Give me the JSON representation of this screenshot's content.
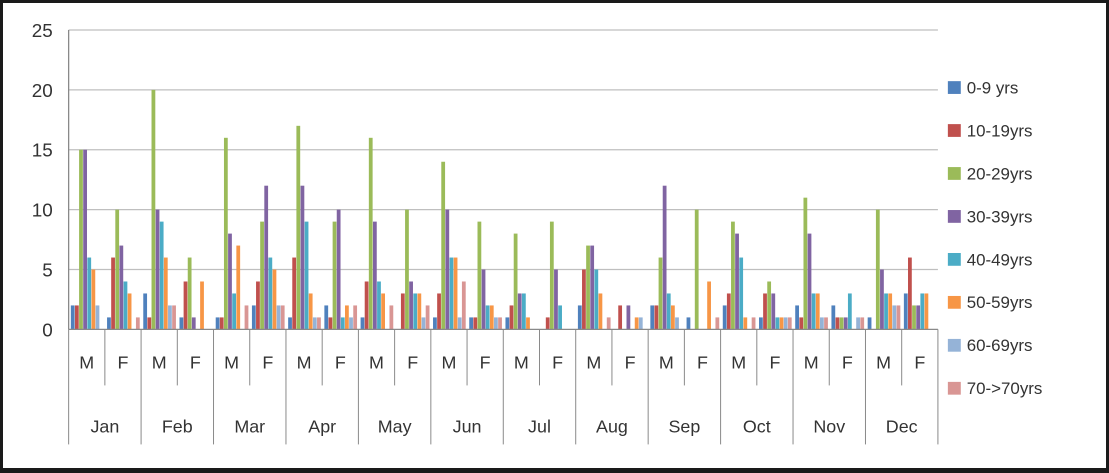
{
  "chart_data": {
    "type": "bar",
    "title": "",
    "y_axis": {
      "min": 0,
      "max": 25,
      "step": 5,
      "tick_labels": [
        "0",
        "5",
        "10",
        "15",
        "20",
        "25"
      ]
    },
    "x_axis": {
      "months": [
        "Jan",
        "Feb",
        "Mar",
        "Apr",
        "May",
        "Jun",
        "Jul",
        "Aug",
        "Sep",
        "Oct",
        "Nov",
        "Dec"
      ],
      "genders": [
        "M",
        "F"
      ]
    },
    "legend_position": "right",
    "series": [
      {
        "name": "0-9 yrs",
        "color": "#4F81BD"
      },
      {
        "name": "10-19yrs",
        "color": "#C0504D"
      },
      {
        "name": "20-29yrs",
        "color": "#9BBB59"
      },
      {
        "name": "30-39yrs",
        "color": "#8064A2"
      },
      {
        "name": "40-49yrs",
        "color": "#4BACC6"
      },
      {
        "name": "50-59yrs",
        "color": "#F79646"
      },
      {
        "name": "60-69yrs",
        "color": "#95B3D7"
      },
      {
        "name": "70->70yrs",
        "color": "#D99694"
      }
    ],
    "groups": [
      {
        "month": "Jan",
        "gender": "M",
        "values": [
          2,
          2,
          15,
          15,
          6,
          5,
          2,
          0
        ]
      },
      {
        "month": "Jan",
        "gender": "F",
        "values": [
          1,
          6,
          10,
          7,
          4,
          3,
          0,
          1
        ]
      },
      {
        "month": "Feb",
        "gender": "M",
        "values": [
          3,
          1,
          20,
          10,
          9,
          6,
          2,
          2
        ]
      },
      {
        "month": "Feb",
        "gender": "F",
        "values": [
          1,
          4,
          6,
          1,
          0,
          4,
          0,
          0
        ]
      },
      {
        "month": "Mar",
        "gender": "M",
        "values": [
          1,
          1,
          16,
          8,
          3,
          7,
          0,
          2
        ]
      },
      {
        "month": "Mar",
        "gender": "F",
        "values": [
          2,
          4,
          9,
          12,
          6,
          5,
          2,
          2
        ]
      },
      {
        "month": "Apr",
        "gender": "M",
        "values": [
          1,
          6,
          17,
          12,
          9,
          3,
          1,
          1
        ]
      },
      {
        "month": "Apr",
        "gender": "F",
        "values": [
          2,
          1,
          9,
          10,
          1,
          2,
          1,
          2
        ]
      },
      {
        "month": "May",
        "gender": "M",
        "values": [
          1,
          4,
          16,
          9,
          4,
          3,
          0,
          2
        ]
      },
      {
        "month": "May",
        "gender": "F",
        "values": [
          0,
          3,
          10,
          4,
          3,
          3,
          1,
          2
        ]
      },
      {
        "month": "Jun",
        "gender": "M",
        "values": [
          1,
          3,
          14,
          10,
          6,
          6,
          1,
          4
        ]
      },
      {
        "month": "Jun",
        "gender": "F",
        "values": [
          1,
          1,
          9,
          5,
          2,
          2,
          1,
          1
        ]
      },
      {
        "month": "Jul",
        "gender": "M",
        "values": [
          1,
          2,
          8,
          3,
          3,
          1,
          0,
          0
        ]
      },
      {
        "month": "Jul",
        "gender": "F",
        "values": [
          0,
          1,
          9,
          5,
          2,
          0,
          0,
          0
        ]
      },
      {
        "month": "Aug",
        "gender": "M",
        "values": [
          2,
          5,
          7,
          7,
          5,
          3,
          0,
          1
        ]
      },
      {
        "month": "Aug",
        "gender": "F",
        "values": [
          0,
          2,
          0,
          2,
          0,
          1,
          1,
          0
        ]
      },
      {
        "month": "Sep",
        "gender": "M",
        "values": [
          2,
          2,
          6,
          12,
          3,
          2,
          1,
          0
        ]
      },
      {
        "month": "Sep",
        "gender": "F",
        "values": [
          1,
          0,
          10,
          0,
          0,
          4,
          0,
          1
        ]
      },
      {
        "month": "Oct",
        "gender": "M",
        "values": [
          2,
          3,
          9,
          8,
          6,
          1,
          0,
          1
        ]
      },
      {
        "month": "Oct",
        "gender": "F",
        "values": [
          1,
          3,
          4,
          3,
          1,
          1,
          1,
          1
        ]
      },
      {
        "month": "Nov",
        "gender": "M",
        "values": [
          2,
          1,
          11,
          8,
          3,
          3,
          1,
          1
        ]
      },
      {
        "month": "Nov",
        "gender": "F",
        "values": [
          2,
          1,
          1,
          1,
          3,
          0,
          1,
          1
        ]
      },
      {
        "month": "Dec",
        "gender": "M",
        "values": [
          1,
          0,
          10,
          5,
          3,
          3,
          2,
          2
        ]
      },
      {
        "month": "Dec",
        "gender": "F",
        "values": [
          3,
          6,
          2,
          2,
          3,
          3,
          0,
          0
        ]
      }
    ]
  },
  "colors": {
    "gridline": "#BFBFBF",
    "axis": "#898989",
    "tick": "#898989",
    "text": "#333333",
    "background": "#FFFFFF",
    "frame": "#1A1A1A"
  }
}
